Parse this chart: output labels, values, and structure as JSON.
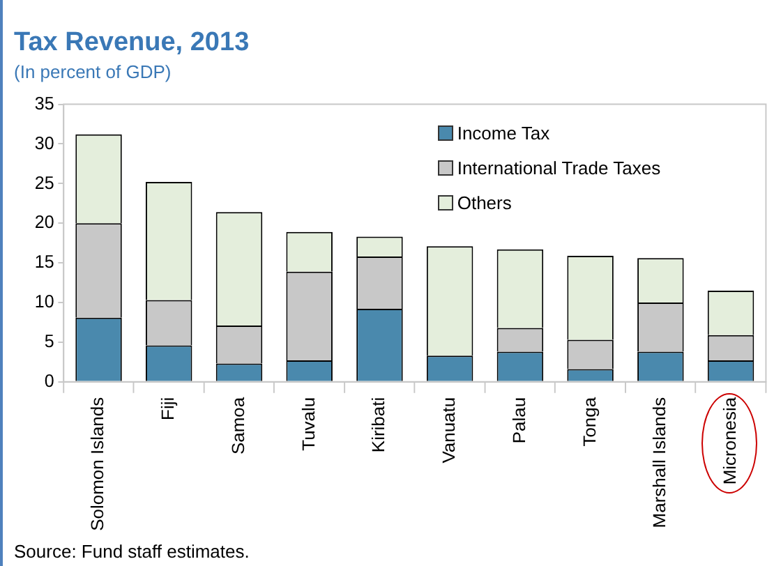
{
  "chart_data": {
    "type": "bar",
    "title": "Tax Revenue, 2013",
    "subtitle": "(In percent of GDP)",
    "categories": [
      "Solomon Islands",
      "Fiji",
      "Samoa",
      "Tuvalu",
      "Kiribati",
      "Vanuatu",
      "Palau",
      "Tonga",
      "Marshall Islands",
      "Micronesia"
    ],
    "series": [
      {
        "name": "Income Tax",
        "color": "#4a89ad",
        "values": [
          8.1,
          4.6,
          2.3,
          2.7,
          9.2,
          3.3,
          3.8,
          1.6,
          3.8,
          2.7
        ]
      },
      {
        "name": "International Trade Taxes",
        "color": "#c8c8c8",
        "values": [
          11.9,
          5.7,
          4.8,
          11.2,
          6.6,
          0,
          3.0,
          3.7,
          6.2,
          3.2
        ]
      },
      {
        "name": "Others",
        "color": "#e4eedc",
        "values": [
          11.2,
          14.9,
          14.3,
          5.0,
          2.5,
          13.8,
          9.9,
          10.6,
          5.6,
          5.6
        ]
      }
    ],
    "stacked": true,
    "ylim": [
      0,
      35
    ],
    "yticks": [
      0,
      5,
      10,
      15,
      20,
      25,
      30,
      35
    ],
    "grid": false,
    "legend": "top right",
    "annotations": [
      "Source: Fund staff estimates."
    ]
  }
}
